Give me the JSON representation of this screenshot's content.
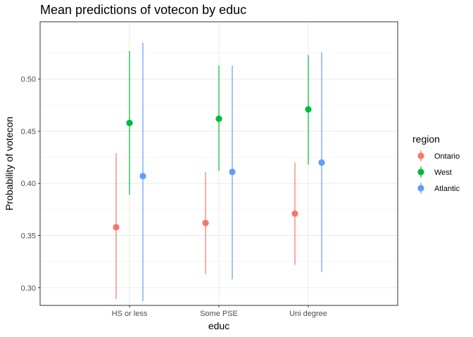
{
  "chart_data": {
    "type": "scatter",
    "title": "Mean predictions of votecon by educ",
    "xlabel": "educ",
    "ylabel": "Probability of votecon",
    "categories": [
      "HS or less",
      "Some PSE",
      "Uni degree"
    ],
    "ylim": [
      0.283,
      0.555
    ],
    "yticks": [
      0.3,
      0.35,
      0.4,
      0.45,
      0.5
    ],
    "ytick_labels": [
      "0.30",
      "0.35",
      "0.40",
      "0.45",
      "0.50"
    ],
    "grid": true,
    "legend": {
      "title": "region",
      "position": "right"
    },
    "series": [
      {
        "name": "Ontario",
        "color": "#F8766D",
        "values": [
          0.358,
          0.362,
          0.371
        ],
        "lower": [
          0.289,
          0.313,
          0.322
        ],
        "upper": [
          0.429,
          0.411,
          0.42
        ]
      },
      {
        "name": "West",
        "color": "#00BA38",
        "values": [
          0.458,
          0.462,
          0.471
        ],
        "lower": [
          0.389,
          0.412,
          0.418
        ],
        "upper": [
          0.527,
          0.513,
          0.523
        ]
      },
      {
        "name": "Atlantic",
        "color": "#619CFF",
        "values": [
          0.407,
          0.411,
          0.42
        ],
        "lower": [
          0.287,
          0.308,
          0.315
        ],
        "upper": [
          0.535,
          0.513,
          0.526
        ]
      }
    ]
  }
}
